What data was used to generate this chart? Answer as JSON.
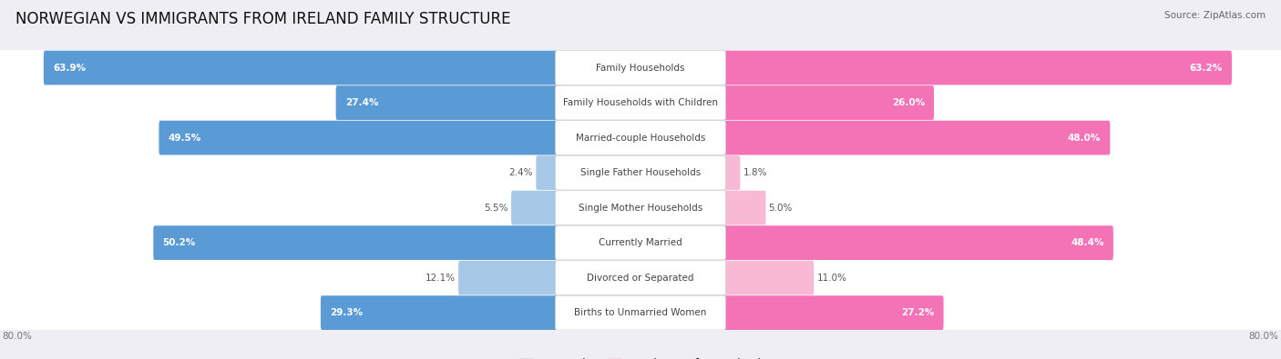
{
  "title": "NORWEGIAN VS IMMIGRANTS FROM IRELAND FAMILY STRUCTURE",
  "source": "Source: ZipAtlas.com",
  "categories": [
    "Family Households",
    "Family Households with Children",
    "Married-couple Households",
    "Single Father Households",
    "Single Mother Households",
    "Currently Married",
    "Divorced or Separated",
    "Births to Unmarried Women"
  ],
  "norwegian_values": [
    63.9,
    27.4,
    49.5,
    2.4,
    5.5,
    50.2,
    12.1,
    29.3
  ],
  "ireland_values": [
    63.2,
    26.0,
    48.0,
    1.8,
    5.0,
    48.4,
    11.0,
    27.2
  ],
  "norwegian_color": "#5b9bd5",
  "ireland_color": "#f472b6",
  "norwegian_color_light": "#a8c8e8",
  "ireland_color_light": "#f9b8d4",
  "max_value": 80.0,
  "background_color": "#eeeef4",
  "title_fontsize": 12,
  "label_fontsize": 7.5,
  "value_fontsize": 7.5,
  "legend_fontsize": 8.5,
  "source_fontsize": 7.5,
  "strong_threshold": 15.0,
  "legend_norwegian": "Norwegian",
  "legend_ireland": "Immigrants from Ireland"
}
